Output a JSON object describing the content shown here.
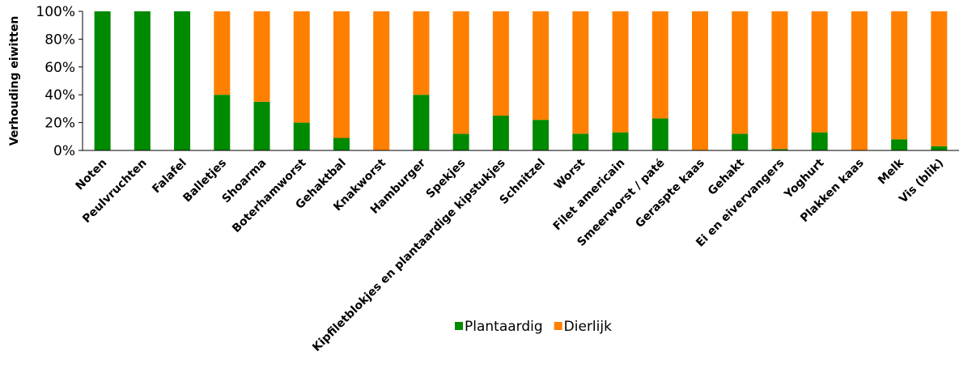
{
  "chart_data": {
    "type": "bar",
    "stacked": true,
    "ylabel": "Verhouding eiwitten",
    "ylim": [
      0,
      100
    ],
    "yticks": [
      "0%",
      "20%",
      "40%",
      "60%",
      "80%",
      "100%"
    ],
    "grid": false,
    "legend_position": "bottom",
    "categories": [
      "Noten",
      "Peulvruchten",
      "Falafel",
      "Balletjes",
      "Shoarma",
      "Boterhamworst",
      "Gehaktbal",
      "Knakworst",
      "Hamburger",
      "Spekjes",
      "Kipfiletblokjes en plantaardige kipstukjes",
      "Schnitzel",
      "Worst",
      "Filet americain",
      "Smeerworst / paté",
      "Geraspte kaas",
      "Gehakt",
      "Ei en eivervangers",
      "Yoghurt",
      "Plakken kaas",
      "Melk",
      "Vis (blik)"
    ],
    "series": [
      {
        "name": "Plantaardig",
        "color": "#008a00",
        "values": [
          100,
          100,
          100,
          40,
          35,
          20,
          9,
          0,
          40,
          12,
          25,
          22,
          12,
          13,
          23,
          0,
          12,
          1,
          13,
          0,
          8,
          3
        ]
      },
      {
        "name": "Dierlijk",
        "color": "#ff8000",
        "values": [
          0,
          0,
          0,
          60,
          65,
          80,
          91,
          100,
          60,
          88,
          75,
          78,
          88,
          87,
          77,
          100,
          88,
          99,
          87,
          100,
          92,
          97
        ]
      }
    ]
  }
}
